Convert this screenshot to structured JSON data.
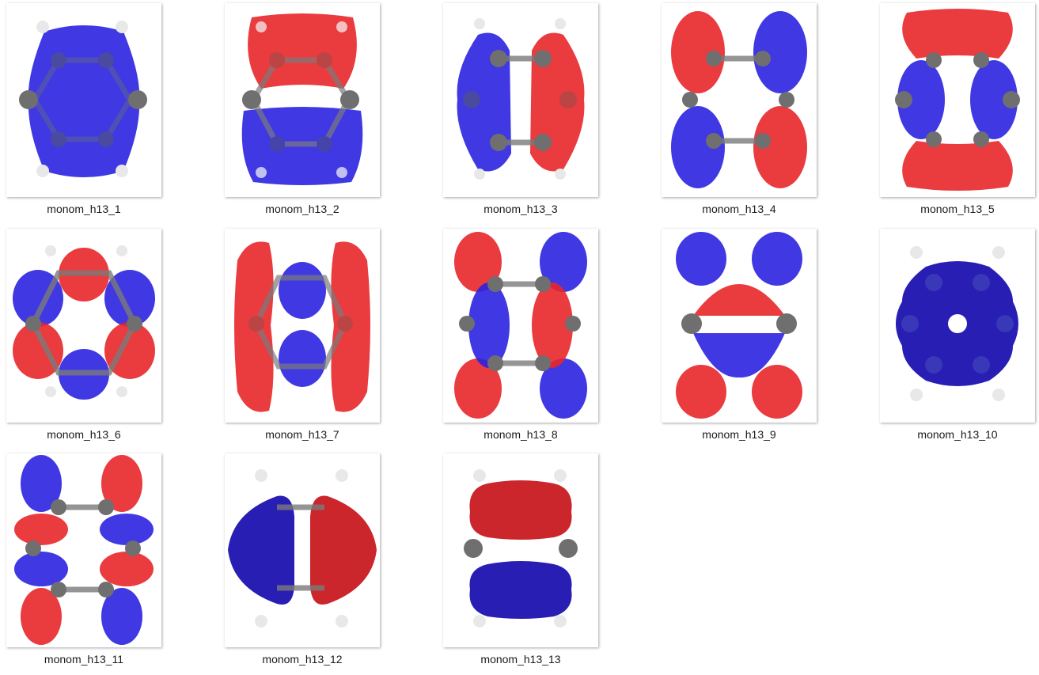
{
  "colors": {
    "positive_lobe": "#e8262a",
    "negative_lobe": "#2a22e0",
    "carbon": "#6f6f6f",
    "hydrogen": "#e8e8e8"
  },
  "files": [
    {
      "name": "monom_h13_1",
      "kind": "file-thumbnail"
    },
    {
      "name": "monom_h13_2",
      "kind": "file-thumbnail"
    },
    {
      "name": "monom_h13_3",
      "kind": "file-thumbnail"
    },
    {
      "name": "monom_h13_4",
      "kind": "file-thumbnail"
    },
    {
      "name": "monom_h13_5",
      "kind": "file-thumbnail"
    },
    {
      "name": "monom_h13_6",
      "kind": "file-thumbnail"
    },
    {
      "name": "monom_h13_7",
      "kind": "file-thumbnail"
    },
    {
      "name": "monom_h13_8",
      "kind": "file-thumbnail"
    },
    {
      "name": "monom_h13_9",
      "kind": "file-thumbnail"
    },
    {
      "name": "monom_h13_10",
      "kind": "file-thumbnail"
    },
    {
      "name": "monom_h13_11",
      "kind": "file-thumbnail"
    },
    {
      "name": "monom_h13_12",
      "kind": "file-thumbnail"
    },
    {
      "name": "monom_h13_13",
      "kind": "file-thumbnail"
    }
  ]
}
